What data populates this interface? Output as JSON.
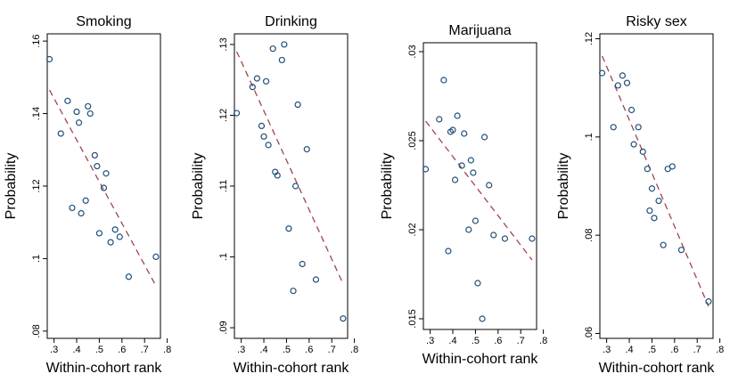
{
  "chart_data": [
    {
      "type": "scatter",
      "title": "Smoking",
      "xlabel": "Within-cohort rank",
      "ylabel": "Probability",
      "xlim": [
        0.27,
        0.77
      ],
      "ylim": [
        0.078,
        0.162
      ],
      "xticks": [
        0.3,
        0.4,
        0.5,
        0.6,
        0.7,
        0.8
      ],
      "xtick_labels": [
        ".3",
        ".4",
        ".5",
        ".6",
        ".7",
        ".8"
      ],
      "yticks": [
        0.08,
        0.1,
        0.12,
        0.14,
        0.16
      ],
      "ytick_labels": [
        ".08",
        ".1",
        ".12",
        ".14",
        ".16"
      ],
      "grid": false,
      "points": {
        "x": [
          0.28,
          0.33,
          0.36,
          0.38,
          0.4,
          0.41,
          0.42,
          0.44,
          0.45,
          0.46,
          0.48,
          0.49,
          0.5,
          0.52,
          0.53,
          0.55,
          0.57,
          0.59,
          0.63,
          0.75
        ],
        "y": [
          0.155,
          0.1345,
          0.1435,
          0.114,
          0.1405,
          0.1375,
          0.1125,
          0.116,
          0.142,
          0.14,
          0.1285,
          0.1255,
          0.107,
          0.1195,
          0.1235,
          0.1045,
          0.108,
          0.106,
          0.095,
          0.1005
        ]
      },
      "fit_line": {
        "x": [
          0.28,
          0.75
        ],
        "y": [
          0.1465,
          0.0925
        ]
      }
    },
    {
      "type": "scatter",
      "title": "Drinking",
      "xlabel": "Within-cohort rank",
      "ylabel": "Probability",
      "xlim": [
        0.27,
        0.77
      ],
      "ylim": [
        0.0885,
        0.1315
      ],
      "xticks": [
        0.3,
        0.4,
        0.5,
        0.6,
        0.7,
        0.8
      ],
      "xtick_labels": [
        ".3",
        ".4",
        ".5",
        ".6",
        ".7",
        ".8"
      ],
      "yticks": [
        0.09,
        0.1,
        0.11,
        0.12,
        0.13
      ],
      "ytick_labels": [
        ".09",
        ".1",
        ".11",
        ".12",
        ".13"
      ],
      "grid": false,
      "points": {
        "x": [
          0.28,
          0.35,
          0.37,
          0.39,
          0.4,
          0.41,
          0.42,
          0.44,
          0.45,
          0.46,
          0.48,
          0.49,
          0.51,
          0.53,
          0.54,
          0.55,
          0.57,
          0.59,
          0.63,
          0.75
        ],
        "y": [
          0.1203,
          0.124,
          0.1252,
          0.1185,
          0.117,
          0.1248,
          0.1158,
          0.1294,
          0.112,
          0.1115,
          0.1278,
          0.13,
          0.104,
          0.0952,
          0.11,
          0.1215,
          0.099,
          0.1152,
          0.0968,
          0.0913
        ]
      },
      "fit_line": {
        "x": [
          0.28,
          0.75
        ],
        "y": [
          0.129,
          0.0962
        ]
      }
    },
    {
      "type": "scatter",
      "title": "Marijuana",
      "xlabel": "Within-cohort rank",
      "ylabel": "Probability",
      "xlim": [
        0.27,
        0.77
      ],
      "ylim": [
        0.0144,
        0.0305
      ],
      "xticks": [
        0.3,
        0.4,
        0.5,
        0.6,
        0.7,
        0.8
      ],
      "xtick_labels": [
        ".3",
        ".4",
        ".5",
        ".6",
        ".7",
        ".8"
      ],
      "yticks": [
        0.015,
        0.02,
        0.025,
        0.03
      ],
      "ytick_labels": [
        ".015",
        ".02",
        ".025",
        ".03"
      ],
      "grid": false,
      "points": {
        "x": [
          0.28,
          0.34,
          0.36,
          0.38,
          0.39,
          0.4,
          0.41,
          0.42,
          0.44,
          0.45,
          0.47,
          0.48,
          0.49,
          0.5,
          0.51,
          0.53,
          0.54,
          0.56,
          0.58,
          0.63,
          0.75
        ],
        "y": [
          0.0234,
          0.0262,
          0.0284,
          0.0188,
          0.0255,
          0.0256,
          0.0228,
          0.0264,
          0.0236,
          0.0254,
          0.02,
          0.0239,
          0.0232,
          0.0205,
          0.017,
          0.015,
          0.0252,
          0.0225,
          0.0197,
          0.0195,
          0.0195
        ]
      },
      "fit_line": {
        "x": [
          0.28,
          0.75
        ],
        "y": [
          0.0261,
          0.0183
        ]
      }
    },
    {
      "type": "scatter",
      "title": "Risky sex",
      "xlabel": "Within-cohort rank",
      "ylabel": "Probability",
      "xlim": [
        0.27,
        0.77
      ],
      "ylim": [
        0.059,
        0.121
      ],
      "xticks": [
        0.3,
        0.4,
        0.5,
        0.6,
        0.7,
        0.8
      ],
      "xtick_labels": [
        ".3",
        ".4",
        ".5",
        ".6",
        ".7",
        ".8"
      ],
      "yticks": [
        0.06,
        0.08,
        0.1,
        0.12
      ],
      "ytick_labels": [
        ".06",
        ".08",
        ".1",
        ".12"
      ],
      "grid": false,
      "points": {
        "x": [
          0.28,
          0.33,
          0.35,
          0.37,
          0.39,
          0.41,
          0.42,
          0.44,
          0.46,
          0.48,
          0.49,
          0.5,
          0.51,
          0.53,
          0.55,
          0.57,
          0.59,
          0.63,
          0.75
        ],
        "y": [
          0.113,
          0.102,
          0.1105,
          0.1125,
          0.111,
          0.1055,
          0.0985,
          0.102,
          0.097,
          0.0935,
          0.085,
          0.0895,
          0.0835,
          0.087,
          0.078,
          0.0935,
          0.094,
          0.077,
          0.0665
        ]
      },
      "fit_line": {
        "x": [
          0.28,
          0.75
        ],
        "y": [
          0.1165,
          0.0655
        ]
      }
    }
  ]
}
